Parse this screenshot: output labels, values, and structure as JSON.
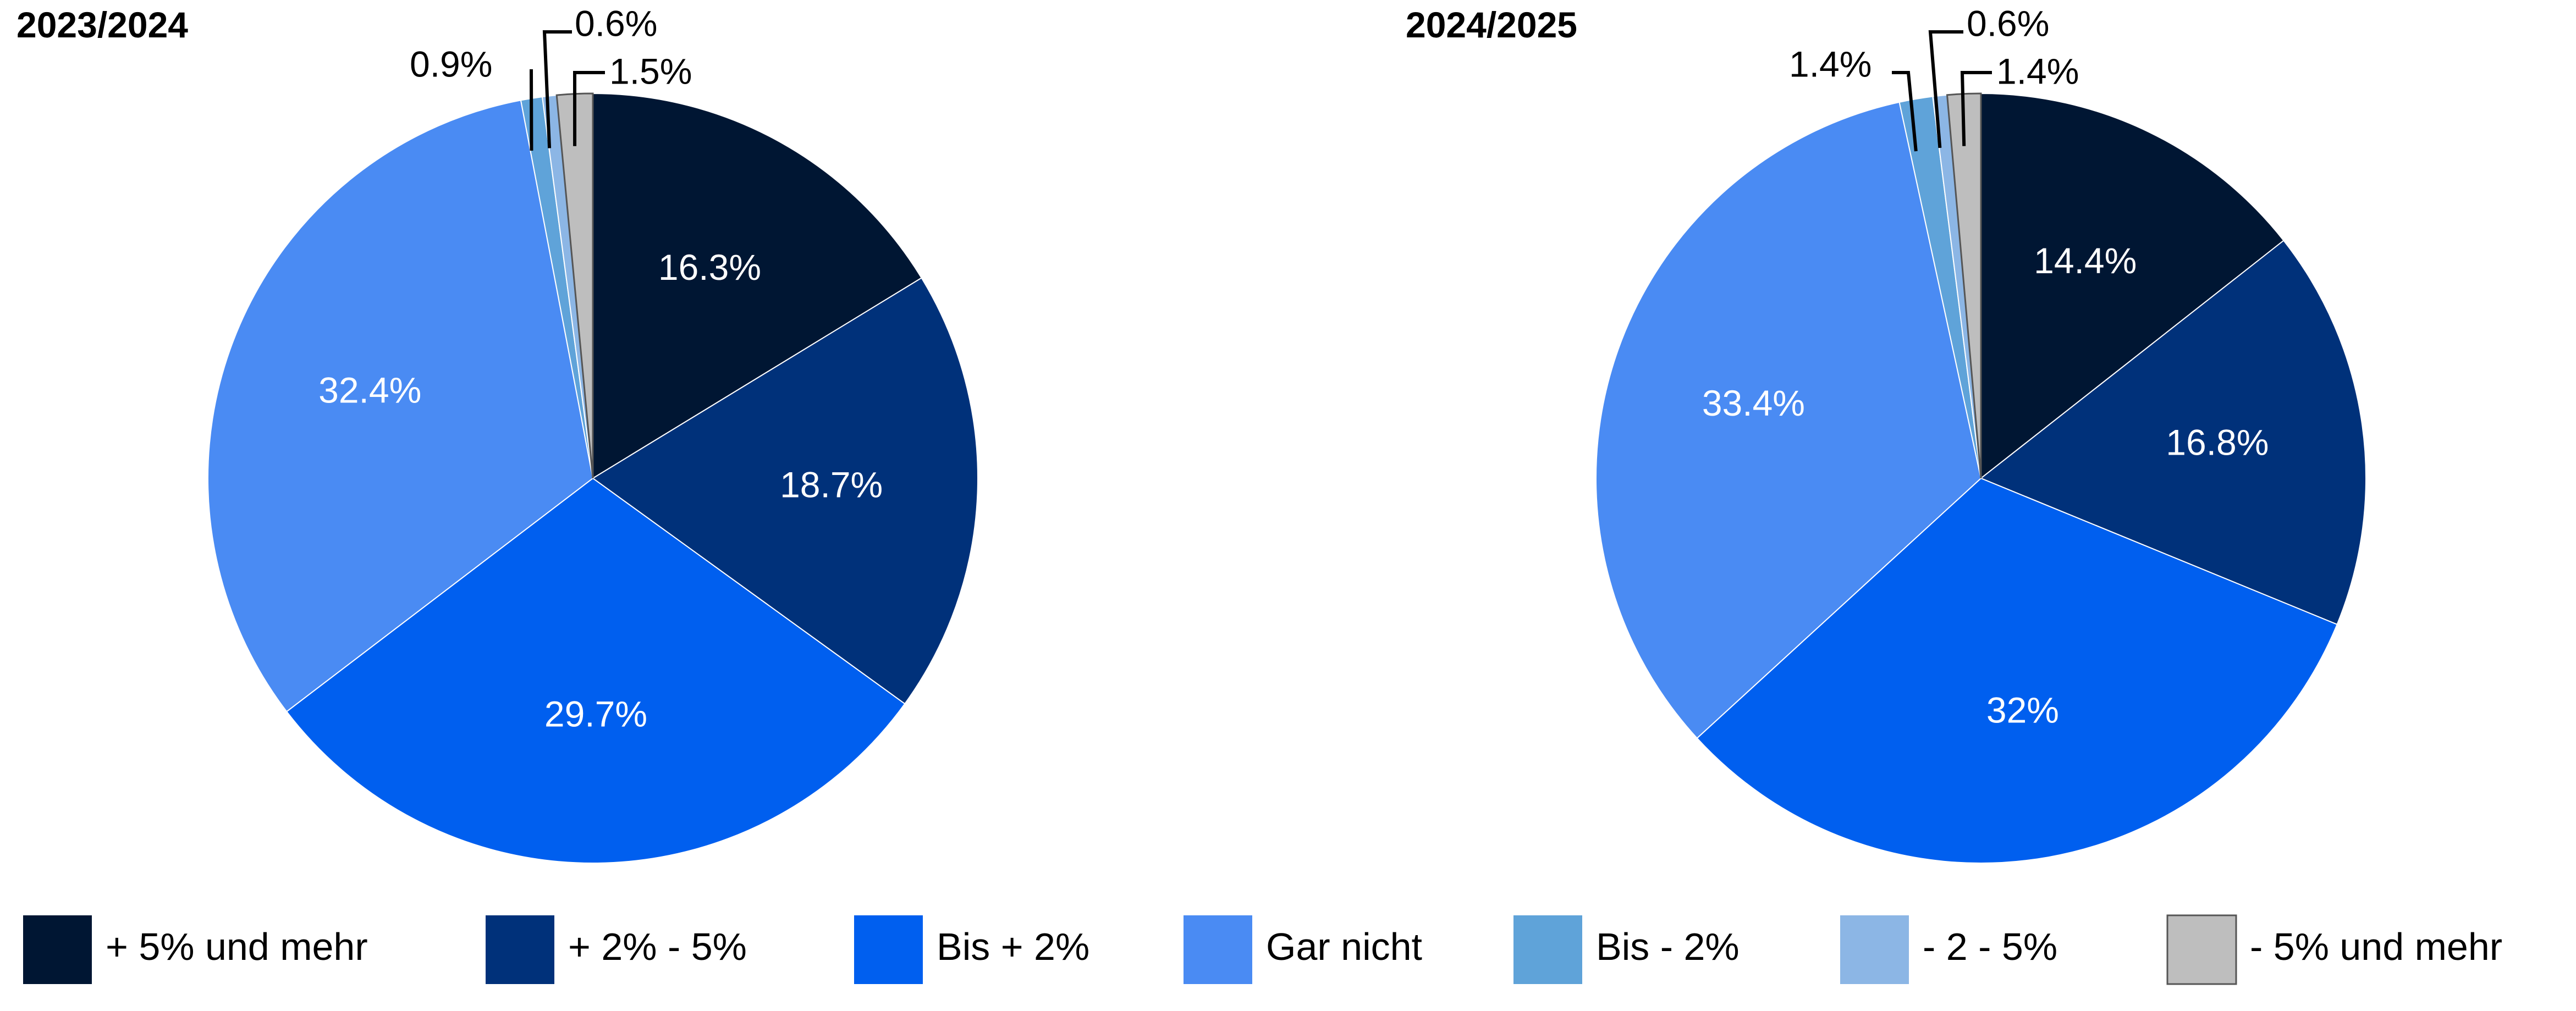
{
  "chart_data": [
    {
      "type": "pie",
      "title": "2023/2024",
      "slices": [
        {
          "label": "+ 5% und mehr",
          "value": 16.3,
          "display": "16.3%"
        },
        {
          "label": "+ 2% - 5%",
          "value": 18.7,
          "display": "18.7%"
        },
        {
          "label": "Bis + 2%",
          "value": 29.7,
          "display": "29.7%"
        },
        {
          "label": "Gar nicht",
          "value": 32.4,
          "display": "32.4%"
        },
        {
          "label": "Bis - 2%",
          "value": 0.9,
          "display": "0.9%"
        },
        {
          "label": "-  2 - 5%",
          "value": 0.6,
          "display": "0.6%"
        },
        {
          "label": "-  5% und mehr",
          "value": 1.5,
          "display": "1.5%"
        }
      ]
    },
    {
      "type": "pie",
      "title": "2024/2025",
      "slices": [
        {
          "label": "+ 5% und mehr",
          "value": 14.4,
          "display": "14.4%"
        },
        {
          "label": "+ 2% - 5%",
          "value": 16.8,
          "display": "16.8%"
        },
        {
          "label": "Bis + 2%",
          "value": 32,
          "display": "32%"
        },
        {
          "label": "Gar nicht",
          "value": 33.4,
          "display": "33.4%"
        },
        {
          "label": "Bis - 2%",
          "value": 1.4,
          "display": "1.4%"
        },
        {
          "label": "-  2 - 5%",
          "value": 0.6,
          "display": "0.6%"
        },
        {
          "label": "-  5% und mehr",
          "value": 1.4,
          "display": "1.4%"
        }
      ]
    }
  ],
  "legend": {
    "placement": "bottom",
    "items": [
      {
        "label": "+ 5% und mehr",
        "color": "#001633"
      },
      {
        "label": "+ 2% - 5%",
        "color": "#00317A"
      },
      {
        "label": "Bis + 2%",
        "color": "#005FEF"
      },
      {
        "label": "Gar nicht",
        "color": "#4A8BF3"
      },
      {
        "label": "Bis - 2%",
        "color": "#5FA3D9"
      },
      {
        "label": "-  2 - 5%",
        "color": "#8CB6E5"
      },
      {
        "label": "-  5% und mehr",
        "color": "#BEBEBE"
      }
    ]
  },
  "colors": {
    "label_on_slice": "#FFFFFF",
    "callout_text": "#000000",
    "slice_border": "#FFFFFF",
    "grey_border": "#555555"
  }
}
